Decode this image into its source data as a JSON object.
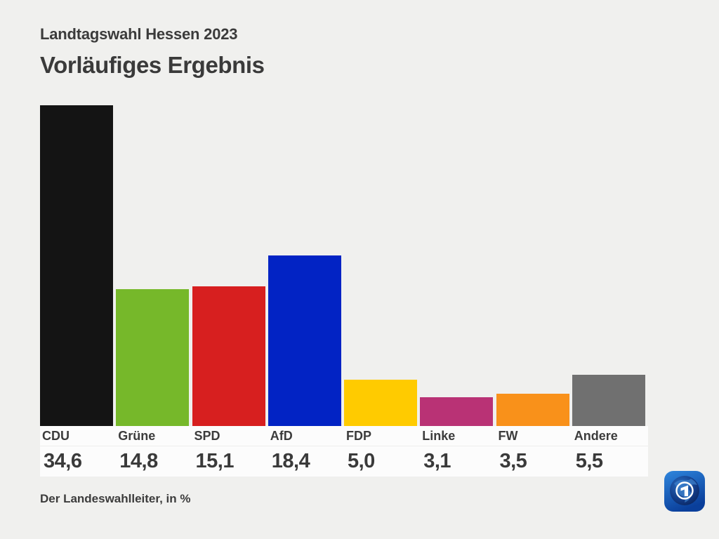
{
  "header": {
    "kicker": "Landtagswahl Hessen 2023",
    "title": "Vorläufiges Ergebnis"
  },
  "footer": {
    "source": "Der Landeswahlleiter, in %"
  },
  "logo": {
    "name": "ARD tagesschau globe logo",
    "square_color_top": "#2f86dd",
    "square_color_bottom": "#0a3f9b",
    "globe_color": "#0a2d72",
    "mark_color": "#ffffff"
  },
  "colors": {
    "page_background": "#f0f0ee",
    "label_band_background": "#fcfcfc",
    "text": "#3b3b3b"
  },
  "chart_data": {
    "type": "bar",
    "title": "Vorläufiges Ergebnis",
    "subtitle": "Landtagswahl Hessen 2023",
    "source_note": "Der Landeswahlleiter, in %",
    "unit": "%",
    "categories": [
      "CDU",
      "Grüne",
      "SPD",
      "AfD",
      "FDP",
      "Linke",
      "FW",
      "Andere"
    ],
    "values": [
      34.6,
      14.8,
      15.1,
      18.4,
      5.0,
      3.1,
      3.5,
      5.5
    ],
    "value_labels": [
      "34,6",
      "14,8",
      "15,1",
      "18,4",
      "5,0",
      "3,1",
      "3,5",
      "5,5"
    ],
    "bar_colors": [
      "#141414",
      "#76b82a",
      "#d71f1f",
      "#0223c4",
      "#ffcb00",
      "#b93275",
      "#f9911a",
      "#707070"
    ],
    "ylim": [
      0,
      34.6
    ],
    "grid": false,
    "legend": false,
    "xlabel": "",
    "ylabel": ""
  }
}
